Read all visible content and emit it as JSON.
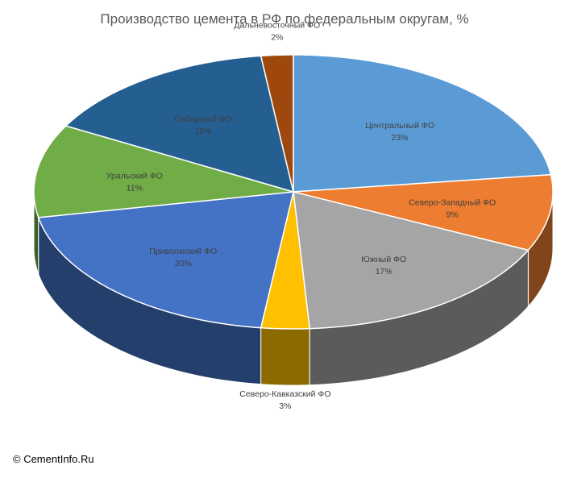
{
  "chart_data": {
    "type": "pie",
    "title": "Производство цемента в РФ по федеральным округам, %",
    "slices": [
      {
        "label": "Центральный ФО",
        "value": 23,
        "value_label": "23%",
        "color": "#5B9BD5"
      },
      {
        "label": "Северо-Западный ФО",
        "value": 9,
        "value_label": "9%",
        "color": "#ED7D31"
      },
      {
        "label": "Южный ФО",
        "value": 17,
        "value_label": "17%",
        "color": "#A5A5A5"
      },
      {
        "label": "Северо-Кавказский ФО",
        "value": 3,
        "value_label": "3%",
        "color": "#FFC000"
      },
      {
        "label": "Приволжский ФО",
        "value": 20,
        "value_label": "20%",
        "color": "#4472C4"
      },
      {
        "label": "Уральский ФО",
        "value": 11,
        "value_label": "11%",
        "color": "#70AD47"
      },
      {
        "label": "Сибирский ФО",
        "value": 15,
        "value_label": "15%",
        "color": "#255E91"
      },
      {
        "label": "Дальневосточный ФО",
        "value": 2,
        "value_label": "2%",
        "color": "#9E480E"
      }
    ]
  },
  "footer": {
    "copyright": "© CementInfo.Ru"
  }
}
